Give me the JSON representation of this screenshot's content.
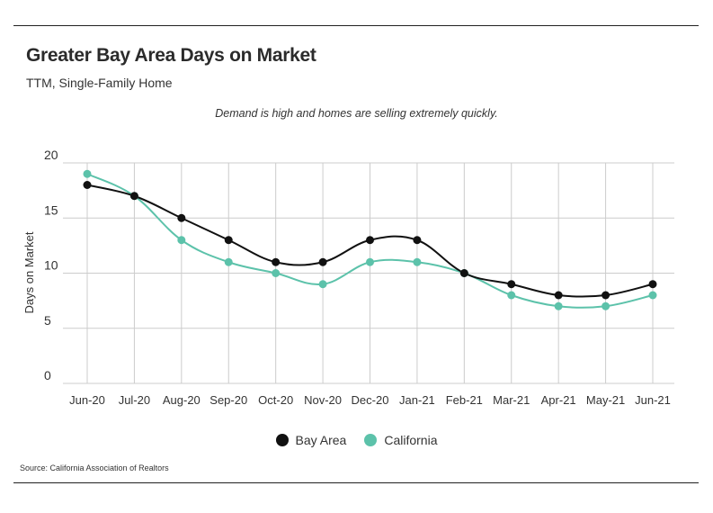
{
  "header": {
    "title": "Greater Bay Area Days on Market",
    "subtitle": "TTM, Single-Family Home",
    "annotation": "Demand is high and homes are selling extremely quickly."
  },
  "footer": {
    "source": "Source:  California Association of Realtors"
  },
  "colors": {
    "bay_area": "#111111",
    "california": "#5cc2aa",
    "grid": "#cccccc"
  },
  "chart_data": {
    "type": "line",
    "categories": [
      "Jun-20",
      "Jul-20",
      "Aug-20",
      "Sep-20",
      "Oct-20",
      "Nov-20",
      "Dec-20",
      "Jan-21",
      "Feb-21",
      "Mar-21",
      "Apr-21",
      "May-21",
      "Jun-21"
    ],
    "series": [
      {
        "name": "Bay Area",
        "color": "#111111",
        "values": [
          18,
          17,
          15,
          13,
          11,
          11,
          13,
          13,
          10,
          9,
          8,
          8,
          9
        ]
      },
      {
        "name": "California",
        "color": "#5cc2aa",
        "values": [
          19,
          17,
          13,
          11,
          10,
          9,
          11,
          11,
          10,
          8,
          7,
          7,
          8
        ]
      }
    ],
    "ylabel": "Days on Market",
    "xlabel": "",
    "ylim": [
      0,
      20
    ],
    "yticks": [
      0,
      5,
      10,
      15,
      20
    ],
    "grid": true,
    "legend_position": "bottom-center"
  }
}
